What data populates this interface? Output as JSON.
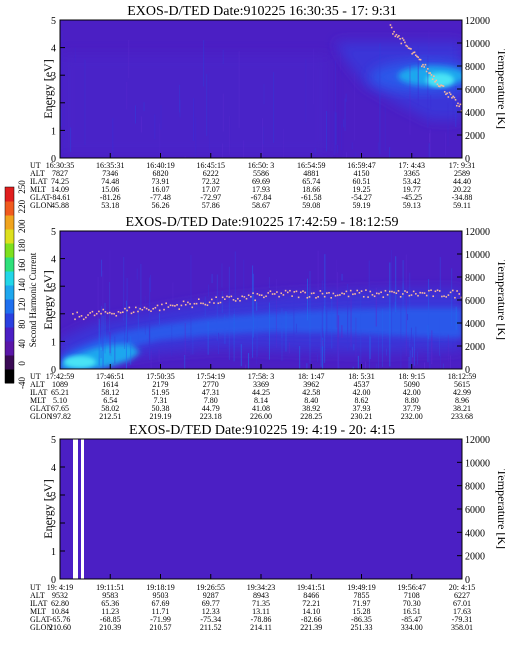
{
  "colors": {
    "background": "#4b1fc4",
    "mid_band": "#2a58ea",
    "core_band": "#1ea7ee",
    "hot": "#48e3f5",
    "temperature_points": "#f7b89a"
  },
  "colorbar": {
    "label": "Second Harmonic Current",
    "ticks": [
      "0",
      "40",
      "80",
      "120",
      "140",
      "160",
      "180",
      "200",
      "220",
      "250"
    ],
    "bottom_tick": "-40"
  },
  "chart_data": [
    {
      "type": "heatmap",
      "title": "EXOS-D/TED  Date:910225  16:30:35 - 17: 9:31",
      "ylabel": "Energy [eV]",
      "y2label": "Temperature [K]",
      "ylim": [
        0,
        5
      ],
      "y2lim": [
        0,
        12000
      ],
      "yticks": [
        "0",
        "1",
        "2",
        "3",
        "4",
        "5"
      ],
      "y2ticks": [
        "0",
        "2000",
        "4000",
        "6000",
        "8000",
        "10000",
        "12000"
      ],
      "orbit_labels": [
        "UT",
        "ALT",
        "ILAT",
        "MLT",
        "GLAT",
        "GLON"
      ],
      "orbit_columns": [
        [
          "16:30:35",
          "7827",
          "74.25",
          "14.09",
          "-84.61",
          "45.88"
        ],
        [
          "16:35:31",
          "7346",
          "74.48",
          "15.06",
          "-81.26",
          "53.18"
        ],
        [
          "16:40:19",
          "6820",
          "73.91",
          "16.07",
          "-77.48",
          "56.26"
        ],
        [
          "16:45:15",
          "6222",
          "72.32",
          "17.07",
          "-72.97",
          "57.86"
        ],
        [
          "16:50: 3",
          "5586",
          "69.69",
          "17.93",
          "-67.84",
          "58.67"
        ],
        [
          "16:54:59",
          "4881",
          "65.74",
          "18.66",
          "-61.58",
          "59.08"
        ],
        [
          "16:59:47",
          "4150",
          "60.51",
          "19.25",
          "-54.27",
          "59.19"
        ],
        [
          "17: 4:43",
          "3365",
          "53.42",
          "19.77",
          "-45.25",
          "59.13"
        ],
        [
          "17: 9:31",
          "2589",
          "44.40",
          "20.22",
          "-34.88",
          "59.11"
        ]
      ]
    },
    {
      "type": "heatmap",
      "title": "EXOS-D/TED  Date:910225  17:42:59 - 18:12:59",
      "ylabel": "Energy [eV]",
      "y2label": "Temperature [K]",
      "ylim": [
        0,
        5
      ],
      "y2lim": [
        0,
        12000
      ],
      "yticks": [
        "0",
        "1",
        "2",
        "3",
        "4",
        "5"
      ],
      "y2ticks": [
        "0",
        "2000",
        "4000",
        "6000",
        "8000",
        "10000",
        "12000"
      ],
      "orbit_labels": [
        "UT",
        "ALT",
        "ILAT",
        "MLT",
        "GLAT",
        "GLON"
      ],
      "orbit_columns": [
        [
          "17:42:59",
          "1089",
          "65.21",
          "5.10",
          "67.65",
          "197.82"
        ],
        [
          "17:46:51",
          "1614",
          "58.12",
          "6.54",
          "58.02",
          "212.51"
        ],
        [
          "17:50:35",
          "2179",
          "51.95",
          "7.31",
          "50.38",
          "219.19"
        ],
        [
          "17:54:19",
          "2770",
          "47.31",
          "7.80",
          "44.79",
          "223.18"
        ],
        [
          "17:58: 3",
          "3369",
          "44.25",
          "8.14",
          "41.08",
          "226.00"
        ],
        [
          "18: 1:47",
          "3962",
          "42.58",
          "8.40",
          "38.92",
          "228.25"
        ],
        [
          "18: 5:31",
          "4537",
          "42.00",
          "8.62",
          "37.93",
          "230.21"
        ],
        [
          "18: 9:15",
          "5090",
          "42.00",
          "8.80",
          "37.79",
          "232.00"
        ],
        [
          "18:12:59",
          "5615",
          "42.99",
          "8.96",
          "38.21",
          "233.68"
        ]
      ]
    },
    {
      "type": "heatmap",
      "title": "EXOS-D/TED  Date:910225  19: 4:19 - 20: 4:15",
      "ylabel": "Energy [eV]",
      "y2label": "Temperature [K]",
      "ylim": [
        0,
        5
      ],
      "y2lim": [
        0,
        12000
      ],
      "yticks": [
        "0",
        "1",
        "2",
        "3",
        "4",
        "5"
      ],
      "y2ticks": [
        "0",
        "2000",
        "4000",
        "6000",
        "8000",
        "10000",
        "12000"
      ],
      "orbit_labels": [
        "UT",
        "ALT",
        "ILAT",
        "MLT",
        "GLAT",
        "GLON"
      ],
      "orbit_columns": [
        [
          "19: 4:19",
          "9532",
          "62.80",
          "10.84",
          "-65.76",
          "210.60"
        ],
        [
          "19:11:51",
          "9583",
          "65.36",
          "11.23",
          "-68.85",
          "210.39"
        ],
        [
          "19:18:19",
          "9503",
          "67.69",
          "11.71",
          "-71.99",
          "210.57"
        ],
        [
          "19:26:55",
          "9287",
          "69.77",
          "12.33",
          "-75.34",
          "211.52"
        ],
        [
          "19:34:23",
          "8943",
          "71.35",
          "13.11",
          "-78.86",
          "214.11"
        ],
        [
          "19:41:51",
          "8466",
          "72.21",
          "14.10",
          "-82.66",
          "221.39"
        ],
        [
          "19:49:19",
          "7855",
          "71.97",
          "15.28",
          "-86.35",
          "251.33"
        ],
        [
          "19:56:47",
          "7108",
          "70.30",
          "16.51",
          "-85.47",
          "334.00"
        ],
        [
          "20: 4:15",
          "6227",
          "67.01",
          "17.63",
          "-79.31",
          "358.01"
        ]
      ]
    }
  ]
}
